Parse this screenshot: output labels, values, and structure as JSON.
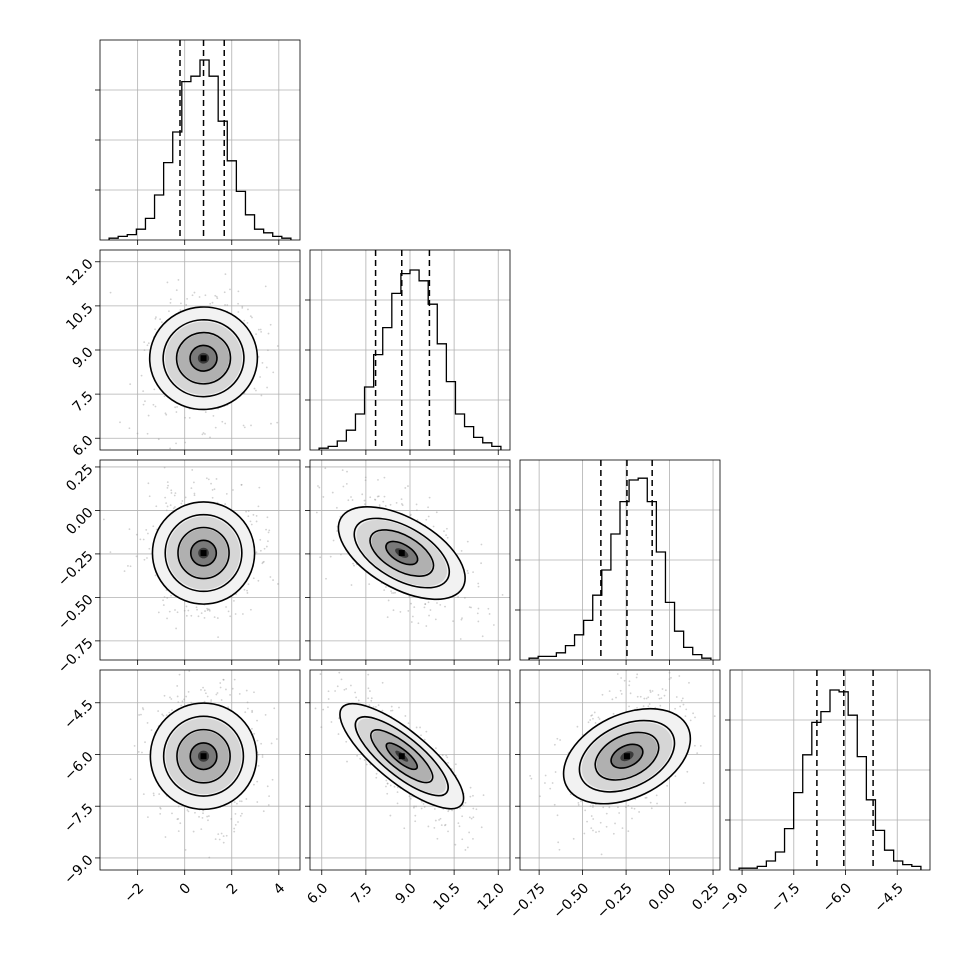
{
  "chart_data": {
    "type": "corner",
    "grid": true,
    "parameters": [
      {
        "range": [
          -3.6,
          4.9
        ],
        "ticks": [
          -2,
          0,
          2,
          4
        ],
        "tick_labels": [
          "−2",
          "0",
          "2",
          "4"
        ],
        "median": 0.8,
        "q16": -0.2,
        "q84": 1.68,
        "sd": 0.97
      },
      {
        "range": [
          5.6,
          12.4
        ],
        "ticks": [
          6.0,
          7.5,
          9.0,
          10.5,
          12.0
        ],
        "tick_labels": [
          "6.0",
          "7.5",
          "9.0",
          "10.5",
          "12.0"
        ],
        "median": 8.72,
        "q16": 7.83,
        "q84": 9.66,
        "sd": 0.92
      },
      {
        "range": [
          -0.86,
          0.29
        ],
        "ticks": [
          -0.75,
          -0.5,
          -0.25,
          0.0,
          0.25
        ],
        "tick_labels": [
          "−0.75",
          "−0.50",
          "−0.25",
          "0.00",
          "0.25"
        ],
        "median": -0.245,
        "q16": -0.395,
        "q84": -0.1,
        "sd": 0.148
      },
      {
        "range": [
          -9.35,
          -3.55
        ],
        "ticks": [
          -9.0,
          -7.5,
          -6.0,
          -4.5
        ],
        "tick_labels": [
          "−9.0",
          "−7.5",
          "−6.0",
          "−4.5"
        ],
        "median": -6.05,
        "q16": -6.83,
        "q84": -5.2,
        "sd": 0.8
      }
    ],
    "histograms": [
      [
        0.01,
        0.02,
        0.03,
        0.06,
        0.12,
        0.25,
        0.43,
        0.6,
        0.88,
        0.91,
        1.0,
        0.91,
        0.66,
        0.44,
        0.27,
        0.14,
        0.06,
        0.04,
        0.02,
        0.01
      ],
      [
        0.01,
        0.02,
        0.05,
        0.11,
        0.2,
        0.35,
        0.53,
        0.68,
        0.87,
        0.98,
        1.0,
        0.94,
        0.81,
        0.59,
        0.38,
        0.2,
        0.13,
        0.07,
        0.04,
        0.02
      ],
      [
        0.01,
        0.02,
        0.02,
        0.04,
        0.08,
        0.14,
        0.22,
        0.36,
        0.5,
        0.7,
        0.88,
        1.0,
        1.01,
        0.88,
        0.6,
        0.32,
        0.16,
        0.07,
        0.03,
        0.01
      ],
      [
        0.01,
        0.01,
        0.02,
        0.05,
        0.1,
        0.23,
        0.43,
        0.64,
        0.82,
        0.88,
        1.0,
        0.99,
        0.86,
        0.63,
        0.39,
        0.22,
        0.11,
        0.05,
        0.03,
        0.02
      ]
    ],
    "correlations": {
      "1-0": 0.05,
      "2-0": 0.0,
      "2-1": -0.6,
      "3-0": 0.0,
      "3-1": -0.8,
      "3-2": 0.45
    },
    "contour_levels_sigma": [
      0.5,
      1.0,
      1.5,
      2.0
    ]
  }
}
